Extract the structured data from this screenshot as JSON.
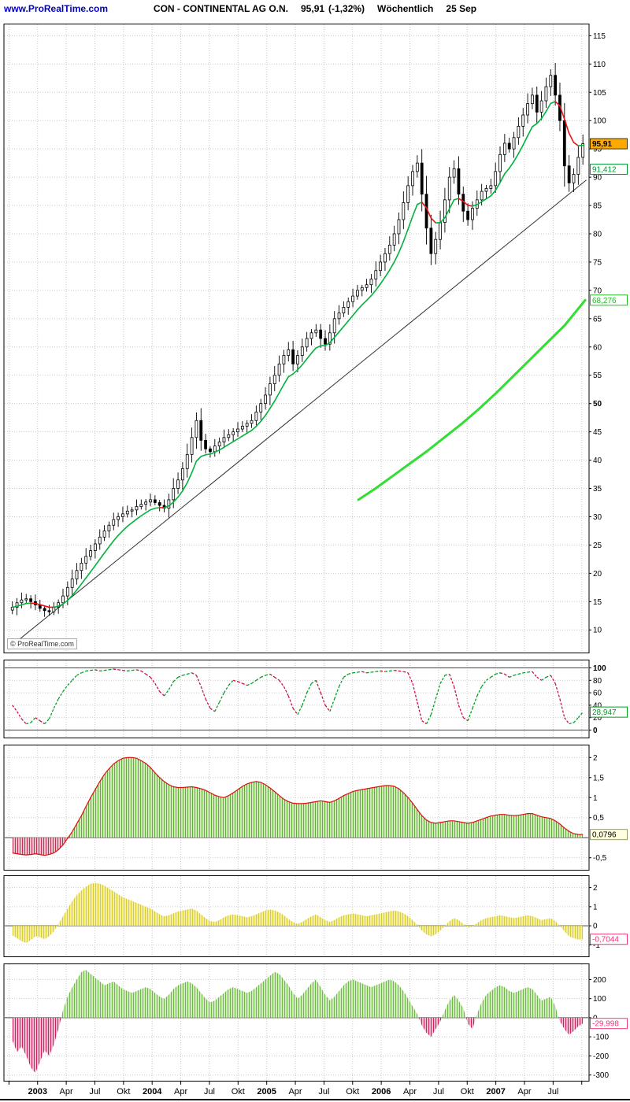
{
  "header": {
    "site": "www.ProRealTime.com",
    "title": "CON - CONTINENTAL AG O.N.",
    "price": "95,91",
    "change": "(-1,32%)",
    "timeframe": "Wöchentlich",
    "date": "25 Sep"
  },
  "copyright": "© ProRealTime.com",
  "x_axis": {
    "xmin": 2002.72,
    "xmax": 2007.8,
    "series_xstart": 2002.78,
    "series_xend": 2007.76,
    "ticks": [
      {
        "x": 2002.75,
        "label": ""
      },
      {
        "x": 2003.0,
        "label": "2003",
        "bold": true
      },
      {
        "x": 2003.25,
        "label": "Apr"
      },
      {
        "x": 2003.5,
        "label": "Jul"
      },
      {
        "x": 2003.75,
        "label": "Okt"
      },
      {
        "x": 2004.0,
        "label": "2004",
        "bold": true
      },
      {
        "x": 2004.25,
        "label": "Apr"
      },
      {
        "x": 2004.5,
        "label": "Jul"
      },
      {
        "x": 2004.75,
        "label": "Okt"
      },
      {
        "x": 2005.0,
        "label": "2005",
        "bold": true
      },
      {
        "x": 2005.25,
        "label": "Apr"
      },
      {
        "x": 2005.5,
        "label": "Jul"
      },
      {
        "x": 2005.75,
        "label": "Okt"
      },
      {
        "x": 2006.0,
        "label": "2006",
        "bold": true
      },
      {
        "x": 2006.25,
        "label": "Apr"
      },
      {
        "x": 2006.5,
        "label": "Jul"
      },
      {
        "x": 2006.75,
        "label": "Okt"
      },
      {
        "x": 2007.0,
        "label": "2007",
        "bold": true
      },
      {
        "x": 2007.25,
        "label": "Apr"
      },
      {
        "x": 2007.5,
        "label": "Jul"
      },
      {
        "x": 2007.75,
        "label": ""
      }
    ]
  },
  "chart_data": [
    {
      "id": "price",
      "type": "candlestick",
      "title": "CON - CONTINENTAL AG O.N. weekly price",
      "ylim": [
        6,
        117
      ],
      "yticks": [
        10,
        15,
        20,
        25,
        30,
        35,
        40,
        45,
        50,
        55,
        60,
        65,
        70,
        75,
        80,
        85,
        90,
        95,
        100,
        105,
        110,
        115
      ],
      "bold_ticks": [
        50
      ],
      "candle_up": "#ffffff",
      "candle_down": "#000000",
      "candle_stroke": "#000000",
      "closes": [
        14.0,
        14.8,
        15.3,
        15.5,
        15.0,
        14.4,
        13.8,
        13.4,
        13.2,
        14.0,
        14.8,
        16.0,
        17.5,
        19.0,
        20.5,
        21.8,
        23.0,
        24.0,
        25.2,
        26.4,
        27.5,
        28.5,
        29.5,
        30.0,
        30.5,
        31.0,
        31.2,
        31.8,
        32.2,
        32.6,
        33.0,
        32.5,
        32.0,
        31.5,
        33.0,
        35.0,
        36.5,
        38.5,
        41.0,
        44.0,
        47.0,
        43.5,
        42.0,
        41.5,
        42.5,
        43.2,
        44.0,
        44.5,
        45.0,
        45.5,
        46.0,
        46.5,
        47.0,
        48.5,
        50.0,
        51.5,
        53.5,
        55.0,
        57.0,
        58.5,
        59.5,
        57.0,
        58.5,
        60.0,
        61.5,
        62.5,
        63.0,
        61.5,
        60.5,
        62.5,
        65.0,
        66.0,
        67.0,
        68.0,
        69.0,
        70.0,
        70.5,
        71.0,
        72.0,
        73.5,
        75.0,
        76.5,
        78.0,
        80.0,
        82.5,
        85.5,
        88.5,
        91.0,
        92.5,
        87.0,
        81.0,
        76.5,
        79.0,
        82.0,
        86.0,
        90.0,
        91.5,
        87.0,
        84.0,
        82.5,
        84.5,
        86.0,
        87.5,
        88.0,
        88.5,
        91.0,
        94.0,
        96.0,
        95.0,
        97.0,
        99.0,
        101.0,
        103.0,
        104.5,
        101.5,
        103.5,
        106.0,
        108.0,
        104.5,
        100.0,
        92.0,
        89.0,
        90.5,
        93.5,
        95.91
      ],
      "overlays": {
        "trendline": {
          "x": [
            2002.76,
            2007.79
          ],
          "y": [
            7.0,
            89.5
          ],
          "color": "#333333"
        },
        "ema": {
          "period": 8,
          "up_color": "#00b33c",
          "down_color": "#ee1111"
        },
        "slow_ma": {
          "color": "#33dd33",
          "width": 3,
          "points": [
            [
              2005.8,
              33.0
            ],
            [
              2005.95,
              35.0
            ],
            [
              2006.1,
              37.2
            ],
            [
              2006.25,
              39.4
            ],
            [
              2006.4,
              41.6
            ],
            [
              2006.55,
              44.0
            ],
            [
              2006.7,
              46.4
            ],
            [
              2006.85,
              49.0
            ],
            [
              2007.0,
              51.8
            ],
            [
              2007.15,
              54.8
            ],
            [
              2007.3,
              57.8
            ],
            [
              2007.45,
              60.8
            ],
            [
              2007.6,
              63.8
            ],
            [
              2007.78,
              68.276
            ]
          ]
        }
      },
      "value_labels": [
        {
          "text": "95,91",
          "value": 95.91,
          "fg": "#000000",
          "bg": "#ffa800",
          "border": "#333300",
          "bold": true
        },
        {
          "text": "91,412",
          "value": 91.412,
          "fg": "#009933",
          "bg": "#ffffff",
          "border": "#009933"
        },
        {
          "text": "68,276",
          "value": 68.276,
          "fg": "#22bb22",
          "bg": "#ffffff",
          "border": "#22bb22"
        }
      ]
    },
    {
      "id": "stochastic",
      "type": "dashed-line",
      "title": "Stochastic oscillator",
      "ylim": [
        -12,
        112
      ],
      "yticks": [
        0,
        20,
        40,
        60,
        80,
        100
      ],
      "bold_ticks": [
        0,
        100
      ],
      "solid_lines": [
        0,
        100
      ],
      "up_color": "#00a022",
      "down_color": "#cc1144",
      "values": [
        40,
        30,
        18,
        10,
        12,
        20,
        15,
        10,
        18,
        35,
        50,
        62,
        72,
        80,
        88,
        92,
        95,
        96,
        97,
        95,
        96,
        97,
        98,
        97,
        96,
        95,
        96,
        97,
        95,
        90,
        85,
        75,
        62,
        55,
        65,
        78,
        85,
        88,
        90,
        92,
        88,
        70,
        50,
        35,
        30,
        45,
        60,
        72,
        80,
        78,
        75,
        72,
        75,
        80,
        85,
        88,
        90,
        85,
        80,
        70,
        55,
        35,
        25,
        40,
        60,
        75,
        80,
        60,
        40,
        30,
        50,
        70,
        85,
        90,
        92,
        93,
        94,
        92,
        93,
        94,
        95,
        94,
        95,
        96,
        95,
        94,
        92,
        75,
        45,
        15,
        10,
        25,
        50,
        75,
        88,
        90,
        70,
        40,
        20,
        15,
        35,
        55,
        70,
        80,
        85,
        90,
        92,
        90,
        85,
        88,
        90,
        92,
        93,
        94,
        85,
        80,
        85,
        88,
        75,
        50,
        20,
        10,
        12,
        20,
        28.947
      ],
      "value_labels": [
        {
          "text": "28,947",
          "value": 28.947,
          "fg": "#00a022",
          "bg": "#ffffff",
          "border": "#00a022"
        }
      ]
    },
    {
      "id": "macd",
      "type": "hatch-area",
      "title": "MACD style histogram",
      "ylim": [
        -0.8,
        2.3
      ],
      "yticks": [
        {
          "v": 2,
          "label": "2"
        },
        {
          "v": 1.5,
          "label": "1,5"
        },
        {
          "v": 1,
          "label": "1"
        },
        {
          "v": 0.5,
          "label": "0,5"
        },
        {
          "v": -0.5,
          "label": "-0,5"
        }
      ],
      "solid_lines": [
        0
      ],
      "pos_fill": "#dff0c8",
      "pos_hatch": "#5fae3c",
      "neg_fill": "#f3d2dc",
      "neg_hatch": "#c03355",
      "line_color": "#dd1111",
      "values": [
        -0.38,
        -0.4,
        -0.42,
        -0.43,
        -0.42,
        -0.4,
        -0.42,
        -0.44,
        -0.42,
        -0.38,
        -0.3,
        -0.18,
        -0.02,
        0.15,
        0.35,
        0.55,
        0.78,
        1.0,
        1.2,
        1.4,
        1.58,
        1.72,
        1.84,
        1.92,
        1.98,
        2.0,
        2.0,
        1.98,
        1.92,
        1.85,
        1.75,
        1.62,
        1.5,
        1.4,
        1.32,
        1.27,
        1.25,
        1.25,
        1.26,
        1.27,
        1.25,
        1.22,
        1.18,
        1.12,
        1.06,
        1.02,
        1.0,
        1.05,
        1.12,
        1.2,
        1.28,
        1.34,
        1.38,
        1.4,
        1.38,
        1.32,
        1.24,
        1.15,
        1.05,
        0.96,
        0.9,
        0.86,
        0.85,
        0.85,
        0.86,
        0.88,
        0.9,
        0.92,
        0.9,
        0.88,
        0.92,
        0.98,
        1.05,
        1.1,
        1.15,
        1.18,
        1.2,
        1.22,
        1.24,
        1.26,
        1.28,
        1.3,
        1.3,
        1.28,
        1.22,
        1.12,
        1.0,
        0.86,
        0.7,
        0.55,
        0.44,
        0.38,
        0.36,
        0.38,
        0.4,
        0.42,
        0.42,
        0.4,
        0.38,
        0.36,
        0.38,
        0.42,
        0.46,
        0.5,
        0.54,
        0.56,
        0.58,
        0.58,
        0.56,
        0.55,
        0.56,
        0.58,
        0.6,
        0.6,
        0.56,
        0.52,
        0.5,
        0.48,
        0.42,
        0.34,
        0.24,
        0.16,
        0.1,
        0.08,
        0.0796
      ],
      "value_labels": [
        {
          "text": "0,0796",
          "value": 0.0796,
          "fg": "#000000",
          "bg": "#ffffdd",
          "border": "#999966"
        }
      ]
    },
    {
      "id": "oscillator",
      "type": "hatch-area",
      "title": "Yellow oscillator histogram",
      "ylim": [
        -1.6,
        2.6
      ],
      "yticks": [
        2,
        1,
        0,
        -1
      ],
      "solid_lines": [
        0
      ],
      "pos_fill": "#f6f2ae",
      "pos_hatch": "#d8cc33",
      "neg_fill": "#f6f2ae",
      "neg_hatch": "#d8cc33",
      "line_color": null,
      "values": [
        -0.5,
        -0.65,
        -0.8,
        -0.9,
        -0.75,
        -0.55,
        -0.6,
        -0.7,
        -0.55,
        -0.3,
        0.1,
        0.5,
        0.9,
        1.3,
        1.6,
        1.85,
        2.05,
        2.2,
        2.25,
        2.2,
        2.1,
        1.95,
        1.8,
        1.65,
        1.5,
        1.4,
        1.3,
        1.2,
        1.1,
        1.0,
        0.9,
        0.75,
        0.6,
        0.5,
        0.55,
        0.65,
        0.75,
        0.8,
        0.85,
        0.9,
        0.8,
        0.6,
        0.4,
        0.25,
        0.2,
        0.3,
        0.45,
        0.55,
        0.6,
        0.55,
        0.5,
        0.45,
        0.5,
        0.6,
        0.7,
        0.8,
        0.85,
        0.8,
        0.7,
        0.55,
        0.35,
        0.2,
        0.1,
        0.2,
        0.35,
        0.5,
        0.6,
        0.45,
        0.3,
        0.2,
        0.3,
        0.45,
        0.55,
        0.6,
        0.65,
        0.6,
        0.55,
        0.5,
        0.55,
        0.6,
        0.65,
        0.7,
        0.75,
        0.8,
        0.75,
        0.65,
        0.5,
        0.3,
        0.05,
        -0.25,
        -0.45,
        -0.55,
        -0.45,
        -0.25,
        0.0,
        0.25,
        0.4,
        0.3,
        0.1,
        -0.1,
        -0.05,
        0.15,
        0.3,
        0.4,
        0.45,
        0.5,
        0.55,
        0.5,
        0.45,
        0.4,
        0.45,
        0.5,
        0.55,
        0.5,
        0.4,
        0.3,
        0.35,
        0.4,
        0.25,
        0.0,
        -0.3,
        -0.55,
        -0.65,
        -0.72,
        -0.7044
      ],
      "value_labels": [
        {
          "text": "-0,7044",
          "value": -0.7044,
          "fg": "#ee3377",
          "bg": "#ffffff",
          "border": "#ee3377"
        }
      ]
    },
    {
      "id": "momentum",
      "type": "hatch-area",
      "title": "Momentum / volume style histogram",
      "ylim": [
        -330,
        280
      ],
      "yticks": [
        200,
        100,
        0,
        -100,
        -200,
        -300
      ],
      "solid_lines": [
        0
      ],
      "pos_fill": "#dcf0cc",
      "pos_hatch": "#6dbb44",
      "neg_fill": "#f6ccd9",
      "neg_hatch": "#cc2266",
      "line_color": null,
      "values": [
        -120,
        -180,
        -150,
        -200,
        -260,
        -290,
        -230,
        -170,
        -200,
        -140,
        -60,
        40,
        110,
        160,
        200,
        240,
        250,
        230,
        210,
        190,
        170,
        180,
        190,
        170,
        150,
        140,
        130,
        140,
        150,
        160,
        150,
        130,
        110,
        100,
        120,
        150,
        170,
        180,
        190,
        180,
        160,
        130,
        100,
        80,
        90,
        110,
        130,
        150,
        160,
        150,
        140,
        130,
        140,
        160,
        180,
        200,
        220,
        240,
        230,
        200,
        170,
        130,
        100,
        120,
        150,
        180,
        200,
        160,
        120,
        90,
        110,
        140,
        170,
        190,
        200,
        190,
        180,
        170,
        160,
        170,
        180,
        190,
        200,
        190,
        170,
        140,
        100,
        60,
        20,
        -40,
        -80,
        -100,
        -60,
        -20,
        40,
        90,
        120,
        90,
        50,
        -30,
        -60,
        20,
        80,
        120,
        140,
        160,
        170,
        160,
        140,
        130,
        140,
        150,
        160,
        150,
        120,
        90,
        100,
        110,
        60,
        -20,
        -60,
        -90,
        -70,
        -45,
        -29.998
      ],
      "value_labels": [
        {
          "text": "-29,998",
          "value": -29.998,
          "fg": "#ee3377",
          "bg": "#ffffff",
          "border": "#ee3377"
        }
      ]
    }
  ]
}
